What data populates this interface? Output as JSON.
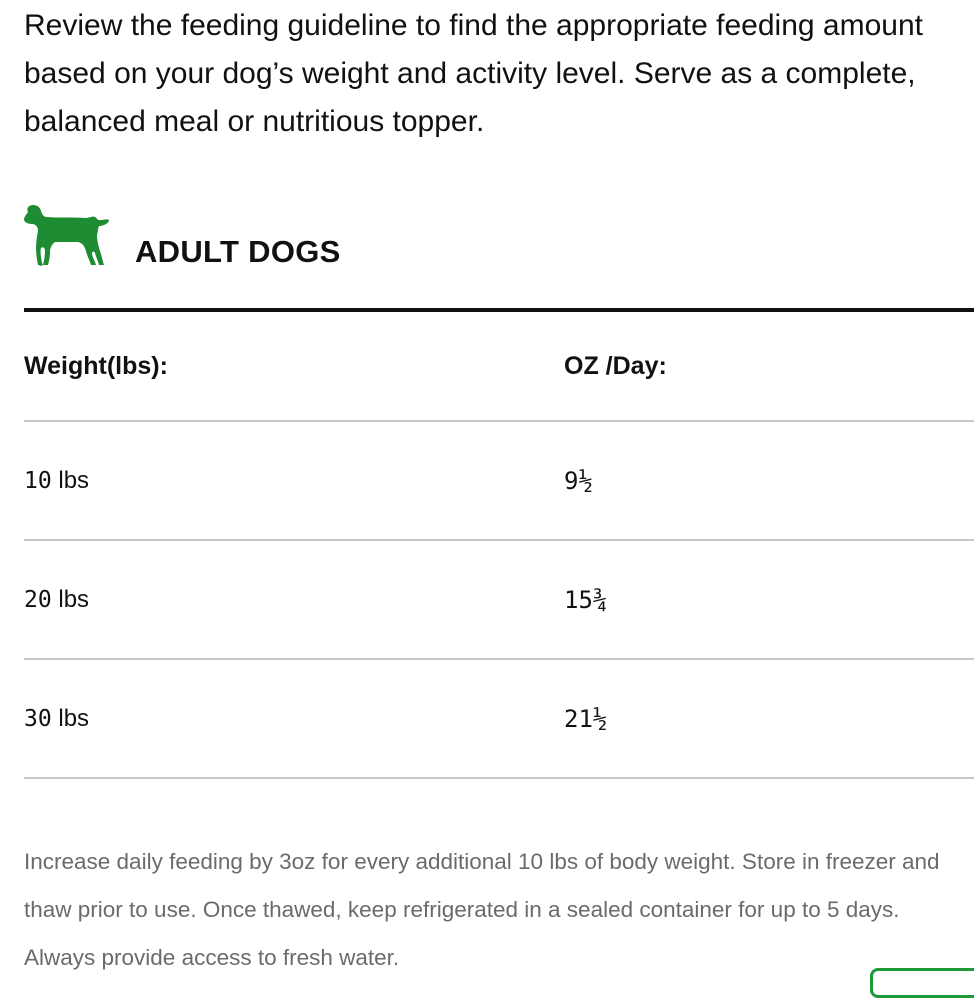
{
  "intro": {
    "text": "Review the feeding guideline to find the appropriate feeding amount based on your dog’s weight and activity level. Serve as a complete, balanced meal or nutritious topper."
  },
  "section": {
    "icon": "dog-icon",
    "title": "ADULT DOGS"
  },
  "table": {
    "headers": {
      "weight": "Weight(lbs):",
      "oz_per_day": "OZ /Day:"
    },
    "rows": [
      {
        "weight_num": "10",
        "weight_unit": " lbs",
        "oz": "9½"
      },
      {
        "weight_num": "20",
        "weight_unit": " lbs",
        "oz": "15¾"
      },
      {
        "weight_num": "30",
        "weight_unit": " lbs",
        "oz": "21½"
      }
    ]
  },
  "footnote": {
    "text": "Increase daily feeding by 3oz for every additional 10 lbs of body weight. Store in freezer and thaw prior to use. Once thawed, keep refrigerated in a sealed container for up to 5 days. Always provide access to fresh water."
  },
  "colors": {
    "brand_green": "#1e8c32",
    "text": "#111111",
    "muted_text": "#6b6b6b",
    "divider": "#c8c8c8",
    "widget_border": "#1e9a3a"
  }
}
